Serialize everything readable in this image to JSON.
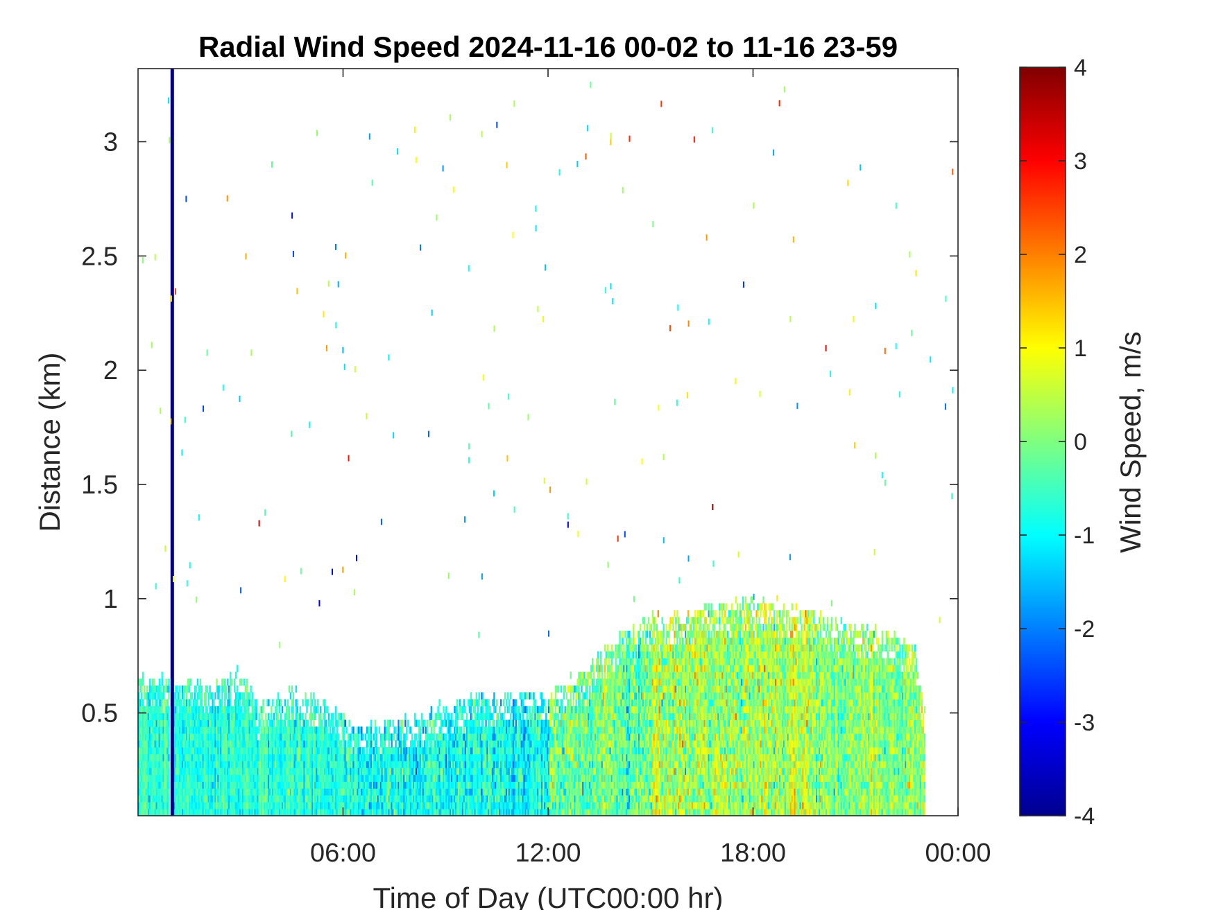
{
  "chart_data": {
    "type": "heatmap",
    "title": "Radial Wind Speed 2024-11-16 00-02 to 11-16 23-59",
    "xlabel": "Time of Day (UTC00:00 hr)",
    "ylabel": "Distance (km)",
    "colorbar_label": "Wind Speed, m/s",
    "xlim_hours": [
      0,
      24
    ],
    "ylim_km": [
      0.05,
      3.32
    ],
    "clim": [
      -4,
      4
    ],
    "colormap": "jet",
    "grid": false,
    "x_ticks": [
      {
        "value": 6,
        "label": "06:00"
      },
      {
        "value": 12,
        "label": "12:00"
      },
      {
        "value": 18,
        "label": "18:00"
      },
      {
        "value": 24,
        "label": "00:00"
      }
    ],
    "y_ticks": [
      {
        "value": 0.5,
        "label": "0.5"
      },
      {
        "value": 1,
        "label": "1"
      },
      {
        "value": 1.5,
        "label": "1.5"
      },
      {
        "value": 2,
        "label": "2"
      },
      {
        "value": 2.5,
        "label": "2.5"
      },
      {
        "value": 3,
        "label": "3"
      }
    ],
    "colorbar_ticks": [
      {
        "value": 4,
        "label": "4"
      },
      {
        "value": 3,
        "label": "3"
      },
      {
        "value": 2,
        "label": "2"
      },
      {
        "value": 1,
        "label": "1"
      },
      {
        "value": 0,
        "label": "0"
      },
      {
        "value": -1,
        "label": "-1"
      },
      {
        "value": -2,
        "label": "-2"
      },
      {
        "value": -3,
        "label": "-3"
      },
      {
        "value": -4,
        "label": "-4"
      }
    ],
    "data_top_profile_km": [
      [
        0.0,
        0.65
      ],
      [
        0.9,
        0.62
      ],
      [
        2.0,
        0.62
      ],
      [
        2.9,
        0.66
      ],
      [
        3.3,
        0.58
      ],
      [
        3.5,
        0.5
      ],
      [
        4.5,
        0.58
      ],
      [
        5.5,
        0.53
      ],
      [
        6.4,
        0.4
      ],
      [
        7.2,
        0.44
      ],
      [
        8.0,
        0.45
      ],
      [
        9.0,
        0.52
      ],
      [
        10.0,
        0.56
      ],
      [
        11.0,
        0.56
      ],
      [
        12.0,
        0.56
      ],
      [
        13.0,
        0.66
      ],
      [
        14.0,
        0.8
      ],
      [
        15.0,
        0.9
      ],
      [
        16.0,
        0.92
      ],
      [
        17.0,
        0.96
      ],
      [
        18.0,
        0.97
      ],
      [
        19.0,
        0.95
      ],
      [
        20.0,
        0.9
      ],
      [
        21.0,
        0.86
      ],
      [
        22.0,
        0.82
      ],
      [
        22.7,
        0.78
      ],
      [
        23.0,
        0.5
      ]
    ],
    "regime_mean_ms": [
      {
        "from_h": 0,
        "to_h": 6,
        "mean": -0.7,
        "spread": 0.8
      },
      {
        "from_h": 6,
        "to_h": 12,
        "mean": -0.9,
        "spread": 1.1
      },
      {
        "from_h": 12,
        "to_h": 15,
        "mean": -0.2,
        "spread": 1.4
      },
      {
        "from_h": 15,
        "to_h": 20,
        "mean": 0.3,
        "spread": 1.5
      },
      {
        "from_h": 20,
        "to_h": 23,
        "mean": 0.1,
        "spread": 1.2
      }
    ],
    "notable_features": [
      {
        "description": "near-constant strong negative column",
        "time_h": 1.0,
        "range_km": [
          0.05,
          3.32
        ],
        "value_ms": -4
      },
      {
        "description": "no-data gap column",
        "time_h": 0.95,
        "range_km": [
          0.05,
          0.62
        ]
      }
    ]
  }
}
